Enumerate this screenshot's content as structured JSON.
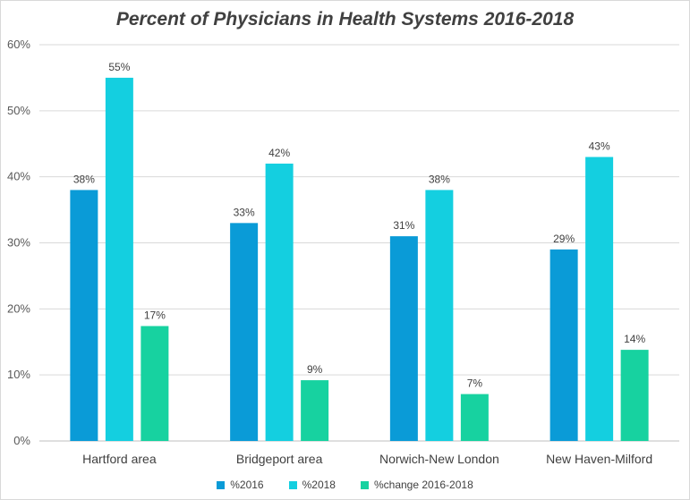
{
  "chart_data": {
    "type": "bar",
    "title": "Percent of Physicians in Health Systems 2016-2018",
    "categories": [
      "Hartford area",
      "Bridgeport area",
      "Norwich-New London",
      "New Haven-Milford"
    ],
    "series": [
      {
        "name": "%2016",
        "values": [
          38,
          33,
          31,
          29
        ],
        "color": "#0a9bd7",
        "labels": [
          "38%",
          "33%",
          "31%",
          "29%"
        ]
      },
      {
        "name": "%2018",
        "values": [
          55,
          42,
          38,
          43
        ],
        "color": "#14cfe0",
        "labels": [
          "55%",
          "42%",
          "38%",
          "43%"
        ]
      },
      {
        "name": "%change 2016-2018",
        "values": [
          17.4,
          9.2,
          7.1,
          13.8
        ],
        "color": "#17d2a0",
        "labels": [
          "17%",
          "9%",
          "7%",
          "14%"
        ]
      }
    ],
    "ylim": [
      0,
      60
    ],
    "yticks": [
      "0%",
      "10%",
      "20%",
      "30%",
      "40%",
      "50%",
      "60%"
    ],
    "grid": true,
    "legend_position": "bottom"
  }
}
